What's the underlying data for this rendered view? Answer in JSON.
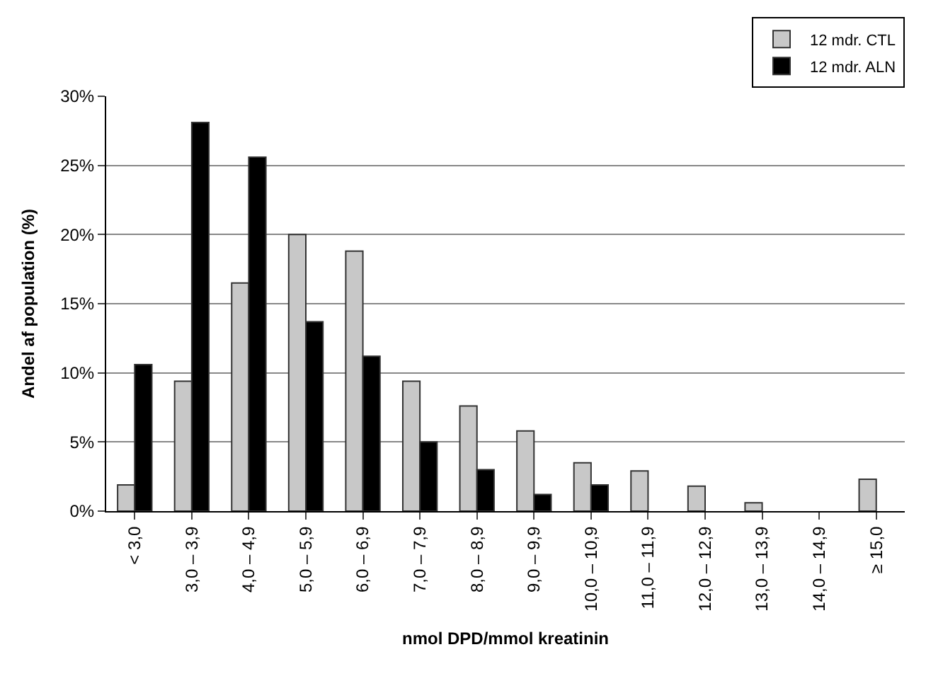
{
  "chart_data": {
    "type": "bar",
    "xlabel": "nmol DPD/mmol kreatinin",
    "ylabel": "Andel af population (%)",
    "categories": [
      "< 3,0",
      "3,0 – 3,9",
      "4,0 – 4,9",
      "5,0 – 5,9",
      "6,0 – 6,9",
      "7,0 – 7,9",
      "8,0 – 8,9",
      "9,0 – 9,9",
      "10,0 – 10,9",
      "11,0 – 11,9",
      "12,0 – 12,9",
      "13,0 – 13,9",
      "14,0 – 14,9",
      "≥ 15,0"
    ],
    "series": [
      {
        "name": "12 mdr. CTL",
        "color": "#c8c8c8",
        "values": [
          1.9,
          9.4,
          16.5,
          20.0,
          18.8,
          9.4,
          7.6,
          5.8,
          3.5,
          2.9,
          1.8,
          0.6,
          null,
          2.3
        ]
      },
      {
        "name": "12 mdr. ALN",
        "color": "#000000",
        "values": [
          10.6,
          28.1,
          25.6,
          13.7,
          11.2,
          5.0,
          3.0,
          1.2,
          1.9,
          null,
          null,
          null,
          null,
          null
        ]
      }
    ],
    "ylim": [
      0,
      30
    ],
    "yticks": [
      {
        "value": 0,
        "label": "0%"
      },
      {
        "value": 5,
        "label": "5%"
      },
      {
        "value": 10,
        "label": "10%"
      },
      {
        "value": 15,
        "label": "15%"
      },
      {
        "value": 20,
        "label": "20%"
      },
      {
        "value": 25,
        "label": "25%"
      },
      {
        "value": 30,
        "label": "30%"
      }
    ],
    "grid": "y",
    "legend": "top right"
  }
}
